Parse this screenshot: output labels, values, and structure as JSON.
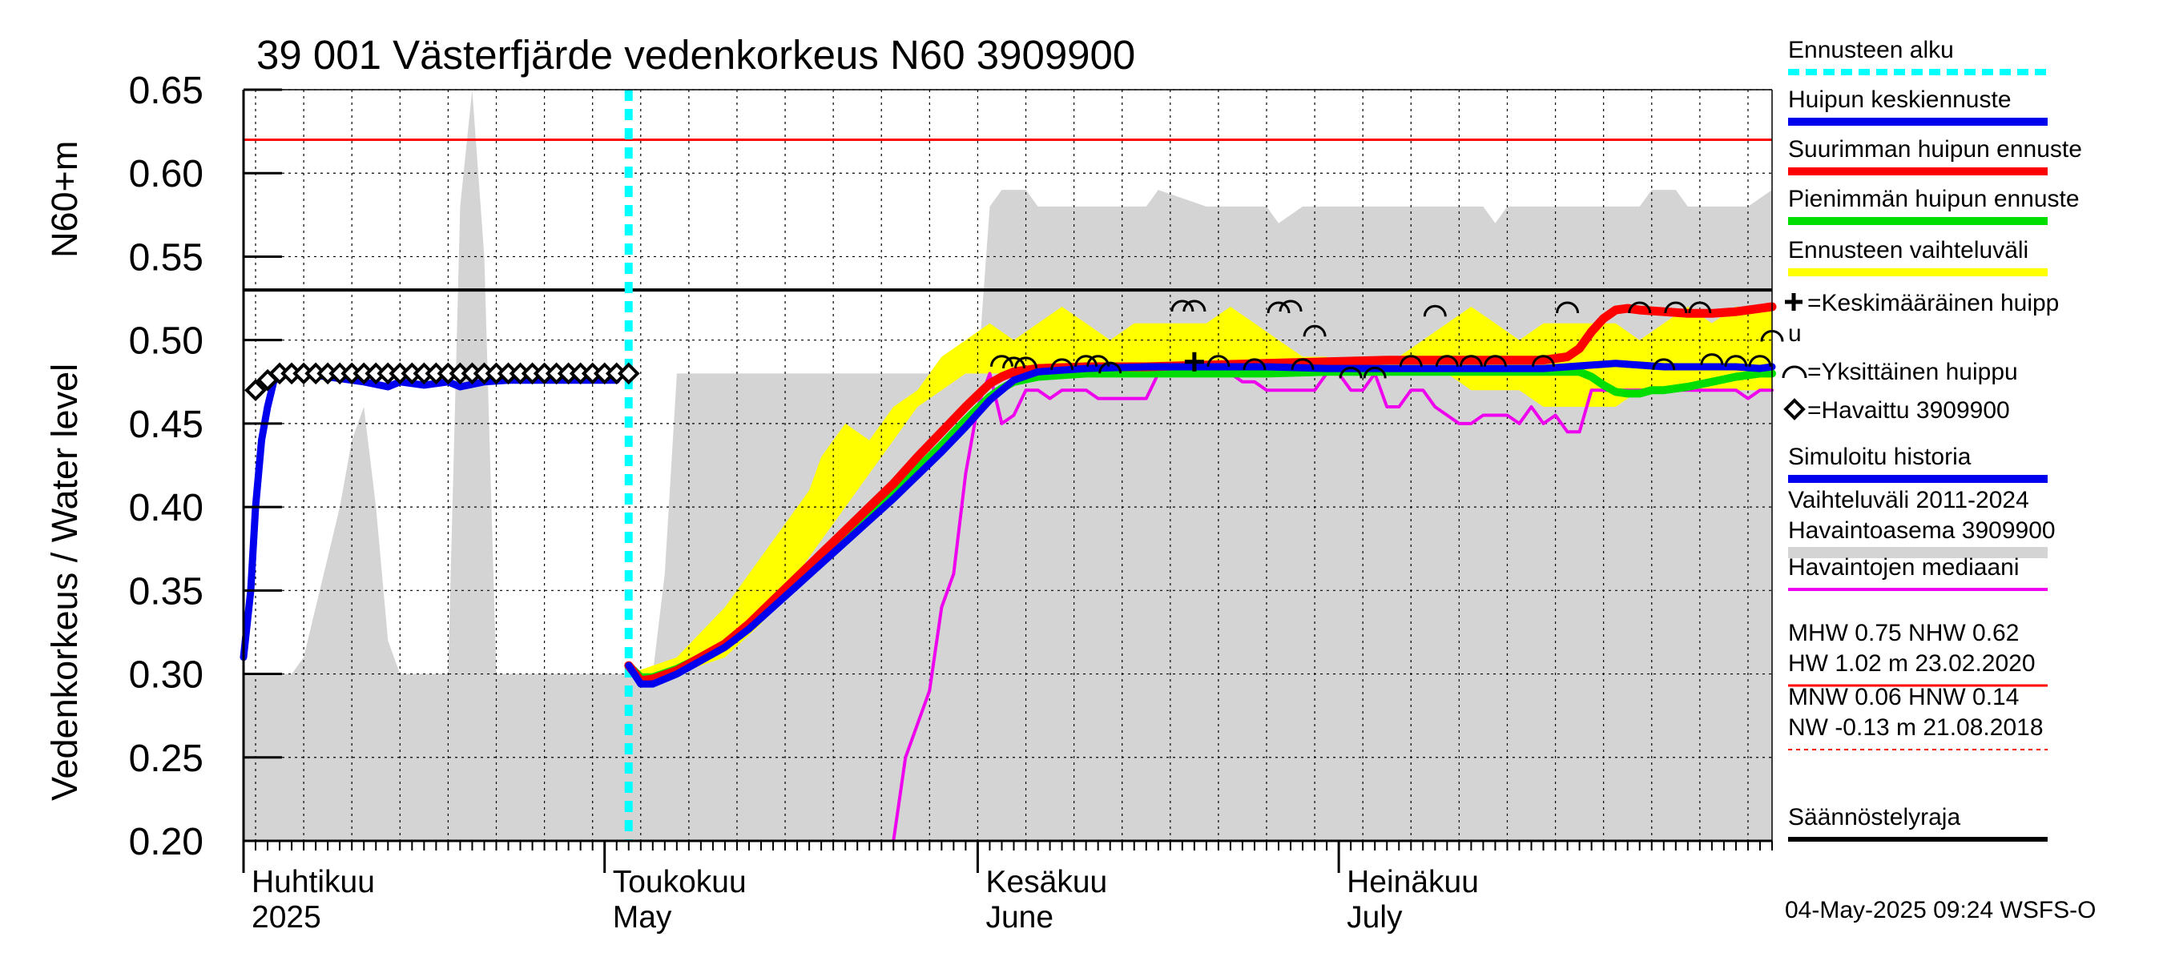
{
  "chart_data": {
    "type": "line",
    "title": "39 001 Västerfjärde vedenkorkeus N60 3909900",
    "ylabel": "Vedenkorkeus / Water level",
    "yunit": "N60+m",
    "ylim": [
      0.2,
      0.65
    ],
    "yticks": [
      "0.65",
      "0.60",
      "0.55",
      "0.50",
      "0.45",
      "0.40",
      "0.35",
      "0.30",
      "0.25",
      "0.20"
    ],
    "xlim": [
      0,
      127
    ],
    "x_unit": "days since 2025-03-27",
    "months": [
      {
        "fi": "Huhtikuu",
        "en": "2025",
        "day": 5
      },
      {
        "fi": "Toukokuu",
        "en": "May",
        "day": 35
      },
      {
        "fi": "Kesäkuu",
        "en": "June",
        "day": 66
      },
      {
        "fi": "Heinäkuu",
        "en": "July",
        "day": 96
      }
    ],
    "forecast_start_day": 32,
    "reference_lines": {
      "red": 0.62,
      "black": 0.53
    },
    "series": [
      {
        "name": "Vaihteluväli 2011-2024 Havaintoasema 3909900",
        "kind": "band",
        "color": "#d4d4d4",
        "x": [
          0,
          3,
          4,
          5,
          6,
          7,
          8,
          9,
          10,
          11,
          12,
          13,
          14,
          15,
          16,
          17,
          18,
          19,
          20,
          21,
          22,
          23,
          24,
          25,
          26,
          27,
          28,
          29,
          30,
          31,
          32,
          33,
          34,
          35,
          36,
          37,
          38,
          39,
          55,
          60,
          61,
          62,
          63,
          64,
          65,
          66,
          67,
          68,
          70,
          74,
          75,
          76,
          80,
          82,
          84,
          85,
          86,
          88,
          90,
          92,
          93,
          94,
          96,
          98,
          100,
          102,
          103,
          104,
          105,
          107,
          110,
          111,
          112,
          115,
          116,
          117,
          118,
          119,
          120,
          121,
          122,
          125,
          127
        ],
        "upper": [
          0.3,
          0.3,
          0.3,
          0.31,
          0.34,
          0.37,
          0.4,
          0.44,
          0.46,
          0.4,
          0.32,
          0.3,
          0.3,
          0.3,
          0.3,
          0.3,
          0.58,
          0.65,
          0.55,
          0.3,
          0.3,
          0.3,
          0.3,
          0.3,
          0.3,
          0.3,
          0.3,
          0.3,
          0.3,
          0.3,
          0.3,
          0.3,
          0.3,
          0.36,
          0.48,
          0.48,
          0.48,
          0.48,
          0.48,
          0.48,
          0.48,
          0.58,
          0.59,
          0.59,
          0.59,
          0.58,
          0.58,
          0.58,
          0.58,
          0.58,
          0.58,
          0.59,
          0.58,
          0.58,
          0.58,
          0.58,
          0.57,
          0.58,
          0.58,
          0.58,
          0.58,
          0.58,
          0.58,
          0.58,
          0.58,
          0.58,
          0.58,
          0.57,
          0.58,
          0.58,
          0.58,
          0.58,
          0.58,
          0.58,
          0.58,
          0.59,
          0.59,
          0.59,
          0.58,
          0.58,
          0.58,
          0.58,
          0.59
        ],
        "lower": [
          0.2,
          0.2,
          0.2,
          0.2,
          0.2,
          0.2,
          0.2,
          0.2,
          0.2,
          0.2,
          0.2,
          0.2,
          0.2,
          0.2,
          0.2,
          0.2,
          0.2,
          0.2,
          0.2,
          0.2,
          0.2,
          0.2,
          0.2,
          0.2,
          0.2,
          0.2,
          0.2,
          0.2,
          0.2,
          0.2,
          0.2,
          0.2,
          0.2,
          0.2,
          0.2,
          0.2,
          0.2,
          0.2,
          0.2,
          0.2,
          0.2,
          0.2,
          0.2,
          0.2,
          0.2,
          0.2,
          0.2,
          0.2,
          0.2,
          0.2,
          0.2,
          0.2,
          0.2,
          0.2,
          0.2,
          0.2,
          0.2,
          0.2,
          0.2,
          0.2,
          0.2,
          0.2,
          0.2,
          0.2,
          0.2,
          0.2,
          0.2,
          0.2,
          0.2,
          0.2,
          0.2,
          0.2,
          0.2,
          0.2,
          0.2,
          0.2,
          0.2,
          0.2,
          0.2,
          0.2,
          0.2,
          0.2,
          0.2
        ]
      },
      {
        "name": "Ennusteen vaihteluväli",
        "kind": "band",
        "color": "#ffff00",
        "x": [
          32,
          36,
          40,
          43,
          45,
          46,
          47,
          48,
          50,
          52,
          54,
          56,
          58,
          60,
          62,
          64,
          66,
          68,
          70,
          72,
          74,
          76,
          78,
          80,
          82,
          84,
          86,
          88,
          90,
          92,
          94,
          96,
          98,
          100,
          102,
          104,
          106,
          108,
          110,
          112,
          114,
          116,
          118,
          120,
          122,
          124,
          127
        ],
        "upper": [
          0.3,
          0.31,
          0.34,
          0.37,
          0.39,
          0.4,
          0.41,
          0.43,
          0.45,
          0.44,
          0.46,
          0.47,
          0.49,
          0.5,
          0.51,
          0.5,
          0.51,
          0.52,
          0.51,
          0.5,
          0.51,
          0.51,
          0.51,
          0.51,
          0.52,
          0.51,
          0.5,
          0.49,
          0.49,
          0.48,
          0.49,
          0.49,
          0.5,
          0.51,
          0.52,
          0.51,
          0.5,
          0.51,
          0.51,
          0.51,
          0.51,
          0.5,
          0.51,
          0.52,
          0.51,
          0.52,
          0.52
        ],
        "lower": [
          0.3,
          0.3,
          0.31,
          0.33,
          0.35,
          0.36,
          0.37,
          0.38,
          0.4,
          0.42,
          0.44,
          0.46,
          0.47,
          0.48,
          0.48,
          0.48,
          0.48,
          0.48,
          0.48,
          0.48,
          0.48,
          0.48,
          0.48,
          0.48,
          0.48,
          0.48,
          0.48,
          0.48,
          0.48,
          0.48,
          0.48,
          0.48,
          0.48,
          0.48,
          0.47,
          0.47,
          0.47,
          0.46,
          0.46,
          0.46,
          0.46,
          0.47,
          0.47,
          0.47,
          0.47,
          0.47,
          0.47
        ]
      },
      {
        "name": "Havaintojen mediaani",
        "kind": "line",
        "color": "#ee00ee",
        "x": [
          54,
          55,
          56,
          57,
          58,
          59,
          60,
          61,
          62,
          63,
          64,
          65,
          66,
          67,
          68,
          69,
          70,
          71,
          72,
          73,
          74,
          75,
          76,
          77,
          78,
          79,
          80,
          81,
          82,
          83,
          84,
          85,
          86,
          87,
          88,
          89,
          90,
          91,
          92,
          93,
          94,
          95,
          96,
          97,
          98,
          99,
          100,
          101,
          102,
          103,
          104,
          105,
          106,
          107,
          108,
          109,
          110,
          111,
          112,
          113,
          114,
          115,
          116,
          117,
          118,
          119,
          120,
          121,
          122,
          123,
          124,
          125,
          126,
          127
        ],
        "y": [
          0.2,
          0.25,
          0.27,
          0.29,
          0.34,
          0.36,
          0.42,
          0.46,
          0.48,
          0.45,
          0.455,
          0.47,
          0.47,
          0.465,
          0.47,
          0.47,
          0.47,
          0.465,
          0.465,
          0.465,
          0.465,
          0.465,
          0.48,
          0.48,
          0.48,
          0.48,
          0.48,
          0.48,
          0.48,
          0.475,
          0.475,
          0.47,
          0.47,
          0.47,
          0.47,
          0.47,
          0.48,
          0.48,
          0.47,
          0.47,
          0.48,
          0.46,
          0.46,
          0.47,
          0.47,
          0.46,
          0.455,
          0.45,
          0.45,
          0.455,
          0.455,
          0.455,
          0.45,
          0.46,
          0.45,
          0.455,
          0.445,
          0.445,
          0.47,
          0.47,
          0.47,
          0.47,
          0.47,
          0.47,
          0.47,
          0.47,
          0.47,
          0.47,
          0.47,
          0.47,
          0.47,
          0.465,
          0.47,
          0.47
        ]
      },
      {
        "name": "Pienimmän huipun ennuste",
        "kind": "line",
        "color": "#00dd00",
        "x": [
          32,
          33,
          34,
          36,
          38,
          40,
          42,
          44,
          46,
          48,
          50,
          52,
          54,
          56,
          58,
          60,
          61,
          62,
          63,
          64,
          66,
          70,
          75,
          80,
          85,
          90,
          95,
          100,
          105,
          108,
          110,
          111,
          112,
          113,
          114,
          115,
          116,
          117,
          118,
          120,
          122,
          124,
          126,
          127
        ],
        "y": [
          0.305,
          0.298,
          0.298,
          0.303,
          0.31,
          0.318,
          0.33,
          0.343,
          0.355,
          0.369,
          0.382,
          0.395,
          0.409,
          0.423,
          0.437,
          0.452,
          0.459,
          0.466,
          0.471,
          0.475,
          0.478,
          0.48,
          0.48,
          0.48,
          0.48,
          0.481,
          0.481,
          0.481,
          0.481,
          0.481,
          0.481,
          0.481,
          0.478,
          0.473,
          0.469,
          0.468,
          0.468,
          0.47,
          0.47,
          0.472,
          0.475,
          0.478,
          0.48,
          0.48
        ]
      },
      {
        "name": "Suurimman huipun ennuste",
        "kind": "line",
        "color": "#ff0000",
        "x": [
          32,
          33,
          34,
          36,
          38,
          40,
          42,
          44,
          46,
          48,
          50,
          52,
          54,
          56,
          58,
          60,
          61,
          62,
          63,
          64,
          66,
          70,
          75,
          80,
          85,
          90,
          95,
          100,
          104,
          108,
          110,
          111,
          112,
          113,
          114,
          115,
          116,
          118,
          120,
          122,
          124,
          126,
          127
        ],
        "y": [
          0.305,
          0.296,
          0.297,
          0.302,
          0.31,
          0.318,
          0.33,
          0.344,
          0.358,
          0.372,
          0.386,
          0.4,
          0.414,
          0.43,
          0.445,
          0.46,
          0.467,
          0.474,
          0.478,
          0.481,
          0.483,
          0.484,
          0.484,
          0.485,
          0.486,
          0.487,
          0.488,
          0.488,
          0.488,
          0.488,
          0.49,
          0.495,
          0.505,
          0.513,
          0.518,
          0.519,
          0.518,
          0.517,
          0.516,
          0.516,
          0.517,
          0.519,
          0.52
        ]
      },
      {
        "name": "Huipun keskiennuste",
        "kind": "line",
        "color": "#0000ee",
        "x": [
          32,
          33,
          34,
          36,
          38,
          40,
          42,
          44,
          46,
          48,
          50,
          52,
          54,
          56,
          58,
          60,
          61,
          62,
          63,
          64,
          66,
          70,
          75,
          80,
          85,
          90,
          95,
          100,
          105,
          108,
          110,
          112,
          114,
          116,
          118,
          120,
          122,
          124,
          126,
          127
        ],
        "y": [
          0.305,
          0.294,
          0.294,
          0.3,
          0.308,
          0.316,
          0.327,
          0.34,
          0.353,
          0.366,
          0.379,
          0.392,
          0.405,
          0.419,
          0.433,
          0.448,
          0.456,
          0.464,
          0.47,
          0.476,
          0.481,
          0.483,
          0.484,
          0.484,
          0.484,
          0.483,
          0.483,
          0.483,
          0.483,
          0.483,
          0.484,
          0.485,
          0.486,
          0.485,
          0.484,
          0.484,
          0.484,
          0.484,
          0.483,
          0.484
        ]
      },
      {
        "name": "Simuloitu historia",
        "kind": "line",
        "color": "#0000ee",
        "x": [
          0,
          0.6,
          1,
          1.5,
          2,
          2.5,
          3,
          5,
          10,
          12,
          13,
          15,
          17,
          18,
          20,
          22,
          25,
          30,
          31
        ],
        "y": [
          0.31,
          0.35,
          0.4,
          0.44,
          0.46,
          0.475,
          0.48,
          0.48,
          0.475,
          0.472,
          0.475,
          0.473,
          0.475,
          0.472,
          0.475,
          0.476,
          0.476,
          0.476,
          0.476
        ]
      },
      {
        "name": "Havaittu 3909900",
        "kind": "markers",
        "marker": "diamond",
        "color": "#000000",
        "x": [
          1,
          2,
          3,
          4,
          5,
          6,
          7,
          8,
          9,
          10,
          11,
          12,
          13,
          14,
          15,
          16,
          17,
          18,
          19,
          20,
          21,
          22,
          23,
          24,
          25,
          26,
          27,
          28,
          29,
          30,
          31,
          32
        ],
        "y": [
          0.47,
          0.476,
          0.48,
          0.48,
          0.48,
          0.48,
          0.48,
          0.48,
          0.48,
          0.48,
          0.48,
          0.48,
          0.48,
          0.48,
          0.48,
          0.48,
          0.48,
          0.48,
          0.48,
          0.48,
          0.48,
          0.48,
          0.48,
          0.48,
          0.48,
          0.48,
          0.48,
          0.48,
          0.48,
          0.48,
          0.48,
          0.48
        ]
      },
      {
        "name": "Yksittäinen huippu",
        "kind": "markers",
        "marker": "arc",
        "color": "#000000",
        "x": [
          63,
          64,
          65,
          70,
          68,
          71,
          72,
          78,
          81,
          84,
          79,
          86,
          87,
          88,
          89,
          92,
          94,
          97,
          99,
          100,
          102,
          104,
          108,
          110,
          116,
          118,
          119,
          121,
          122,
          124,
          126,
          127
        ],
        "y": [
          0.487,
          0.486,
          0.486,
          0.487,
          0.485,
          0.487,
          0.483,
          0.52,
          0.487,
          0.485,
          0.52,
          0.519,
          0.52,
          0.485,
          0.505,
          0.48,
          0.48,
          0.487,
          0.517,
          0.487,
          0.487,
          0.487,
          0.487,
          0.519,
          0.519,
          0.485,
          0.519,
          0.519,
          0.488,
          0.487,
          0.487,
          0.502
        ]
      },
      {
        "name": "Keskimääräinen huippu",
        "kind": "markers",
        "marker": "plus",
        "color": "#000000",
        "x": [
          79
        ],
        "y": [
          0.487
        ]
      }
    ],
    "legend": [
      {
        "label": "Ennusteen alku",
        "style": "dashed",
        "color": "#00ffff"
      },
      {
        "label": "Huipun keskiennuste",
        "style": "line",
        "color": "#0000ee"
      },
      {
        "label": "Suurimman huipun ennuste",
        "style": "line",
        "color": "#ff0000"
      },
      {
        "label": "Pienimmän huipun ennuste",
        "style": "line",
        "color": "#00dd00"
      },
      {
        "label": "Ennusteen vaihteluväli",
        "style": "line",
        "color": "#ffff00"
      },
      {
        "label": "=Keskimääräinen huipp",
        "label2": "u",
        "style": "plus"
      },
      {
        "label": "=Yksittäinen huippu",
        "style": "arc"
      },
      {
        "label": "=Havaittu 3909900",
        "style": "diamond"
      },
      {
        "label": "Simuloitu historia",
        "style": "line",
        "color": "#0000ee"
      },
      {
        "label": "Vaihteluväli 2011-2024",
        "label2": " Havaintoasema 3909900",
        "style": "line",
        "color": "#d4d4d4"
      },
      {
        "label": "Havaintojen mediaani",
        "style": "line",
        "color": "#ee00ee"
      },
      {
        "label": "MHW    0.75 NHW    0.62",
        "label2": "HW    1.02 m 23.02.2020",
        "style": "line",
        "color": "#ff0000"
      },
      {
        "label": "MNW    0.06 HNW    0.14",
        "label2": "NW  -0.13 m 21.08.2018",
        "style": "dashed",
        "color": "#ff0000"
      },
      {
        "label": "Säännöstelyraja",
        "style": "line",
        "color": "#000000"
      }
    ],
    "timestamp": "04-May-2025 09:24 WSFS-O"
  }
}
